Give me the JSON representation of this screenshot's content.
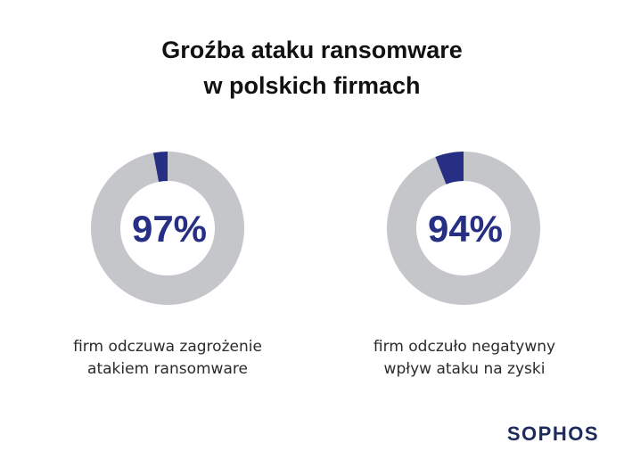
{
  "title": {
    "line1": "Groźba ataku ransomware",
    "line2": "w polskich firmach"
  },
  "chart_data": [
    {
      "type": "pie",
      "variant": "donut",
      "value_percent": 97,
      "label": "97%",
      "caption_line1": "firm odczuwa zagrożenie",
      "caption_line2": "atakiem ransomware"
    },
    {
      "type": "pie",
      "variant": "donut",
      "value_percent": 94,
      "label": "94%",
      "caption_line1": "firm odczuło negatywny",
      "caption_line2": "wpływ ataku na zyski"
    }
  ],
  "colors": {
    "main_segment": "#c4c6ca",
    "remainder_segment": "#262f84",
    "value_text": "#262f84"
  },
  "brand": {
    "logo_text": "SOPHOS"
  }
}
